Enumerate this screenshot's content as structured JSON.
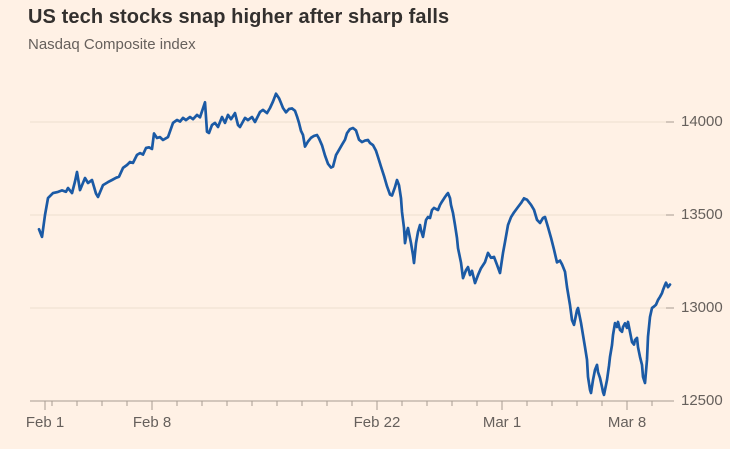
{
  "header": {
    "title": "US tech stocks snap higher after sharp falls",
    "subtitle": "Nasdaq Composite index"
  },
  "colors": {
    "background": "#FFF1E5",
    "title_text": "#33302E",
    "muted_text": "#66605C",
    "gridline": "#ECDFD0",
    "axis": "#A79C91",
    "line": "#1B5AA5"
  },
  "chart_data": {
    "type": "line",
    "title": "US tech stocks snap higher after sharp falls",
    "subtitle": "Nasdaq Composite index",
    "xlabel": "",
    "ylabel": "",
    "grid": "horizontal-only",
    "x_axis": {
      "unit": "trading days since Feb 1 2021",
      "labels": [
        {
          "label": "Feb 1",
          "d": 0.72
        },
        {
          "label": "Feb 8",
          "d": 5
        },
        {
          "label": "Feb 22",
          "d": 14
        },
        {
          "label": "Mar 1",
          "d": 19
        },
        {
          "label": "Mar 8",
          "d": 24
        }
      ],
      "minor_tick_days": [
        1,
        2,
        3,
        4,
        6,
        7,
        8,
        9,
        10,
        11,
        12,
        13,
        15,
        16,
        17,
        18,
        20,
        21,
        22,
        23,
        25
      ]
    },
    "y_axis": {
      "ticks": [
        12500,
        13000,
        13500,
        14000
      ],
      "ylim": [
        12500,
        14200
      ],
      "side": "right"
    },
    "series": [
      {
        "name": "Nasdaq Composite index",
        "color": "#1B5AA5",
        "points": [
          [
            0.48,
            13423
          ],
          [
            0.6,
            13382
          ],
          [
            0.72,
            13500
          ],
          [
            0.84,
            13591
          ],
          [
            1.04,
            13618
          ],
          [
            1.24,
            13624
          ],
          [
            1.4,
            13632
          ],
          [
            1.56,
            13625
          ],
          [
            1.64,
            13645
          ],
          [
            1.8,
            13618
          ],
          [
            1.92,
            13680
          ],
          [
            2.0,
            13731
          ],
          [
            2.12,
            13634
          ],
          [
            2.32,
            13699
          ],
          [
            2.44,
            13672
          ],
          [
            2.6,
            13688
          ],
          [
            2.76,
            13615
          ],
          [
            2.84,
            13597
          ],
          [
            3.04,
            13661
          ],
          [
            3.24,
            13677
          ],
          [
            3.4,
            13688
          ],
          [
            3.56,
            13700
          ],
          [
            3.68,
            13706
          ],
          [
            3.84,
            13753
          ],
          [
            4.0,
            13769
          ],
          [
            4.12,
            13785
          ],
          [
            4.24,
            13780
          ],
          [
            4.4,
            13823
          ],
          [
            4.52,
            13833
          ],
          [
            4.64,
            13825
          ],
          [
            4.76,
            13860
          ],
          [
            4.88,
            13864
          ],
          [
            5.0,
            13855
          ],
          [
            5.08,
            13938
          ],
          [
            5.2,
            13914
          ],
          [
            5.32,
            13919
          ],
          [
            5.44,
            13903
          ],
          [
            5.64,
            13919
          ],
          [
            5.84,
            13995
          ],
          [
            6.0,
            14011
          ],
          [
            6.12,
            14002
          ],
          [
            6.24,
            14022
          ],
          [
            6.36,
            14010
          ],
          [
            6.52,
            14027
          ],
          [
            6.64,
            14015
          ],
          [
            6.8,
            14038
          ],
          [
            6.92,
            14025
          ],
          [
            7.12,
            14106
          ],
          [
            7.2,
            13948
          ],
          [
            7.28,
            13941
          ],
          [
            7.4,
            13984
          ],
          [
            7.52,
            13995
          ],
          [
            7.64,
            13973
          ],
          [
            7.8,
            14027
          ],
          [
            7.92,
            13995
          ],
          [
            8.04,
            14038
          ],
          [
            8.16,
            14015
          ],
          [
            8.32,
            14048
          ],
          [
            8.44,
            13984
          ],
          [
            8.52,
            13973
          ],
          [
            8.72,
            14022
          ],
          [
            8.84,
            14010
          ],
          [
            9.0,
            14027
          ],
          [
            9.12,
            14000
          ],
          [
            9.32,
            14054
          ],
          [
            9.44,
            14065
          ],
          [
            9.6,
            14048
          ],
          [
            9.72,
            14075
          ],
          [
            9.84,
            14110
          ],
          [
            9.96,
            14152
          ],
          [
            10.08,
            14128
          ],
          [
            10.16,
            14102
          ],
          [
            10.24,
            14075
          ],
          [
            10.36,
            14052
          ],
          [
            10.48,
            14070
          ],
          [
            10.6,
            14073
          ],
          [
            10.72,
            14060
          ],
          [
            10.8,
            14030
          ],
          [
            10.88,
            13995
          ],
          [
            10.96,
            13952
          ],
          [
            11.04,
            13930
          ],
          [
            11.12,
            13868
          ],
          [
            11.24,
            13895
          ],
          [
            11.36,
            13915
          ],
          [
            11.48,
            13925
          ],
          [
            11.6,
            13930
          ],
          [
            11.68,
            13912
          ],
          [
            11.8,
            13875
          ],
          [
            11.92,
            13820
          ],
          [
            12.04,
            13775
          ],
          [
            12.16,
            13755
          ],
          [
            12.24,
            13760
          ],
          [
            12.36,
            13822
          ],
          [
            12.48,
            13850
          ],
          [
            12.6,
            13878
          ],
          [
            12.72,
            13905
          ],
          [
            12.8,
            13940
          ],
          [
            12.92,
            13962
          ],
          [
            13.04,
            13968
          ],
          [
            13.16,
            13955
          ],
          [
            13.28,
            13905
          ],
          [
            13.4,
            13892
          ],
          [
            13.52,
            13900
          ],
          [
            13.64,
            13903
          ],
          [
            13.72,
            13887
          ],
          [
            13.84,
            13876
          ],
          [
            13.96,
            13845
          ],
          [
            14.04,
            13812
          ],
          [
            14.16,
            13760
          ],
          [
            14.28,
            13710
          ],
          [
            14.4,
            13655
          ],
          [
            14.52,
            13610
          ],
          [
            14.6,
            13605
          ],
          [
            14.72,
            13650
          ],
          [
            14.8,
            13688
          ],
          [
            14.88,
            13660
          ],
          [
            14.96,
            13590
          ],
          [
            15.0,
            13516
          ],
          [
            15.08,
            13430
          ],
          [
            15.12,
            13349
          ],
          [
            15.2,
            13412
          ],
          [
            15.24,
            13430
          ],
          [
            15.32,
            13376
          ],
          [
            15.36,
            13349
          ],
          [
            15.44,
            13285
          ],
          [
            15.48,
            13242
          ],
          [
            15.56,
            13349
          ],
          [
            15.64,
            13409
          ],
          [
            15.72,
            13446
          ],
          [
            15.76,
            13418
          ],
          [
            15.84,
            13382
          ],
          [
            15.96,
            13473
          ],
          [
            16.04,
            13489
          ],
          [
            16.12,
            13484
          ],
          [
            16.2,
            13527
          ],
          [
            16.28,
            13538
          ],
          [
            16.36,
            13532
          ],
          [
            16.44,
            13527
          ],
          [
            16.52,
            13554
          ],
          [
            16.6,
            13572
          ],
          [
            16.72,
            13597
          ],
          [
            16.8,
            13612
          ],
          [
            16.84,
            13618
          ],
          [
            16.92,
            13591
          ],
          [
            16.96,
            13554
          ],
          [
            17.04,
            13511
          ],
          [
            17.12,
            13446
          ],
          [
            17.2,
            13376
          ],
          [
            17.24,
            13322
          ],
          [
            17.36,
            13244
          ],
          [
            17.44,
            13161
          ],
          [
            17.56,
            13204
          ],
          [
            17.64,
            13220
          ],
          [
            17.72,
            13177
          ],
          [
            17.8,
            13200
          ],
          [
            17.92,
            13134
          ],
          [
            18.04,
            13177
          ],
          [
            18.16,
            13214
          ],
          [
            18.32,
            13247
          ],
          [
            18.44,
            13296
          ],
          [
            18.56,
            13270
          ],
          [
            18.68,
            13275
          ],
          [
            18.8,
            13232
          ],
          [
            18.92,
            13188
          ],
          [
            19.04,
            13296
          ],
          [
            19.12,
            13355
          ],
          [
            19.24,
            13446
          ],
          [
            19.36,
            13488
          ],
          [
            19.48,
            13514
          ],
          [
            19.64,
            13543
          ],
          [
            19.76,
            13564
          ],
          [
            19.88,
            13590
          ],
          [
            20.0,
            13582
          ],
          [
            20.16,
            13555
          ],
          [
            20.28,
            13528
          ],
          [
            20.4,
            13474
          ],
          [
            20.52,
            13457
          ],
          [
            20.64,
            13484
          ],
          [
            20.72,
            13489
          ],
          [
            20.84,
            13435
          ],
          [
            20.96,
            13378
          ],
          [
            21.08,
            13314
          ],
          [
            21.2,
            13245
          ],
          [
            21.32,
            13255
          ],
          [
            21.4,
            13235
          ],
          [
            21.52,
            13195
          ],
          [
            21.6,
            13113
          ],
          [
            21.72,
            13016
          ],
          [
            21.8,
            12935
          ],
          [
            21.88,
            12909
          ],
          [
            22.0,
            12988
          ],
          [
            22.04,
            13000
          ],
          [
            22.16,
            12920
          ],
          [
            22.24,
            12855
          ],
          [
            22.32,
            12790
          ],
          [
            22.4,
            12722
          ],
          [
            22.44,
            12630
          ],
          [
            22.52,
            12560
          ],
          [
            22.56,
            12543
          ],
          [
            22.64,
            12613
          ],
          [
            22.72,
            12667
          ],
          [
            22.8,
            12694
          ],
          [
            22.84,
            12656
          ],
          [
            22.92,
            12624
          ],
          [
            23.0,
            12576
          ],
          [
            23.04,
            12548
          ],
          [
            23.08,
            12533
          ],
          [
            23.2,
            12613
          ],
          [
            23.28,
            12690
          ],
          [
            23.32,
            12737
          ],
          [
            23.4,
            12801
          ],
          [
            23.44,
            12855
          ],
          [
            23.52,
            12919
          ],
          [
            23.6,
            12898
          ],
          [
            23.64,
            12925
          ],
          [
            23.72,
            12882
          ],
          [
            23.8,
            12872
          ],
          [
            23.84,
            12898
          ],
          [
            23.92,
            12918
          ],
          [
            24.0,
            12893
          ],
          [
            24.04,
            12925
          ],
          [
            24.12,
            12871
          ],
          [
            24.2,
            12817
          ],
          [
            24.28,
            12803
          ],
          [
            24.32,
            12828
          ],
          [
            24.4,
            12839
          ],
          [
            24.44,
            12790
          ],
          [
            24.52,
            12737
          ],
          [
            24.6,
            12694
          ],
          [
            24.64,
            12630
          ],
          [
            24.72,
            12597
          ],
          [
            24.8,
            12722
          ],
          [
            24.84,
            12845
          ],
          [
            24.92,
            12952
          ],
          [
            25.0,
            13000
          ],
          [
            25.08,
            13008
          ],
          [
            25.16,
            13018
          ],
          [
            25.24,
            13043
          ],
          [
            25.32,
            13060
          ],
          [
            25.4,
            13080
          ],
          [
            25.44,
            13097
          ],
          [
            25.52,
            13124
          ],
          [
            25.56,
            13136
          ],
          [
            25.64,
            13112
          ],
          [
            25.72,
            13126
          ]
        ]
      }
    ]
  }
}
